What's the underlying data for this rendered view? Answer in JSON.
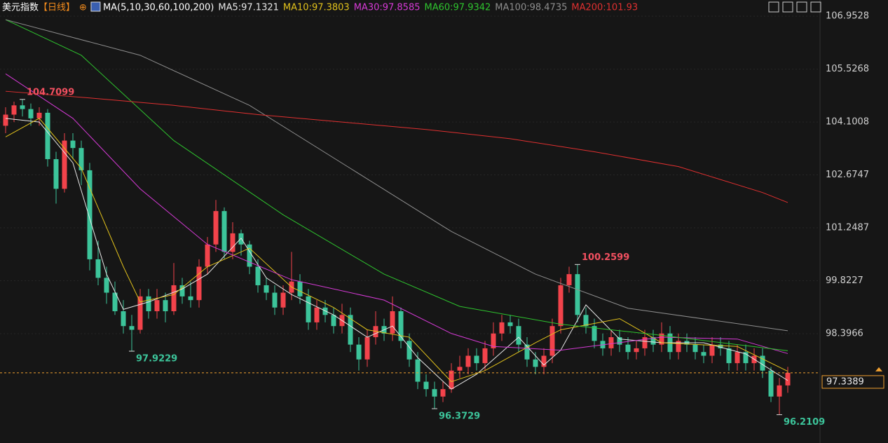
{
  "chart_data": {
    "type": "candlestick",
    "title": "美元指数",
    "period": "【日线】",
    "period_icon": "⊕",
    "indicator": "MA(5,10,30,60,100,200)",
    "ylim": [
      95.58,
      107.39
    ],
    "yticks": [
      106.9528,
      105.5268,
      104.1008,
      102.6747,
      101.2487,
      99.8227,
      98.3966
    ],
    "last_price": 97.3389,
    "colors": {
      "up": "#f2434b",
      "down": "#3cc49a",
      "last": "#f0a030"
    },
    "open": [
      104.0,
      104.3,
      104.55,
      104.45,
      104.2,
      104.35,
      103.1,
      102.3,
      103.6,
      103.4,
      102.8,
      100.4,
      99.9,
      99.5,
      99.0,
      98.6,
      98.5,
      99.4,
      99.0,
      99.3,
      99.0,
      99.7,
      99.4,
      99.3,
      100.2,
      100.8,
      101.7,
      100.6,
      101.1,
      100.8,
      100.2,
      99.7,
      99.5,
      99.1,
      99.5,
      99.8,
      99.4,
      98.7,
      99.1,
      98.9,
      98.6,
      98.9,
      98.1,
      97.7,
      98.3,
      98.6,
      98.4,
      99.0,
      98.2,
      97.7,
      97.1,
      96.9,
      96.7,
      96.9,
      97.4,
      97.5,
      97.8,
      97.6,
      98.0,
      98.4,
      98.7,
      98.6,
      98.1,
      97.7,
      97.5,
      97.8,
      98.6,
      99.7,
      100.0,
      98.9,
      98.6,
      98.2,
      98.0,
      98.3,
      98.1,
      97.9,
      98.0,
      98.3,
      98.1,
      98.4,
      97.9,
      98.2,
      98.1,
      97.9,
      97.8,
      98.1,
      98.0,
      97.6,
      97.9,
      97.6,
      97.8,
      97.4,
      96.7,
      97.0
    ],
    "high": [
      104.5,
      104.65,
      104.7099,
      104.6,
      104.5,
      104.45,
      103.3,
      103.8,
      103.8,
      103.6,
      103.0,
      100.9,
      100.2,
      99.8,
      99.3,
      98.9,
      99.6,
      99.6,
      99.6,
      99.5,
      100.3,
      99.9,
      99.8,
      100.4,
      101.0,
      102.0,
      101.8,
      101.4,
      101.2,
      100.9,
      100.4,
      99.9,
      99.7,
      99.7,
      100.6,
      100.0,
      99.6,
      99.3,
      99.3,
      99.1,
      99.2,
      99.1,
      98.3,
      98.5,
      99.0,
      98.8,
      99.4,
      99.1,
      98.4,
      97.9,
      97.3,
      97.1,
      97.1,
      97.6,
      97.8,
      98.0,
      98.0,
      98.2,
      98.7,
      98.9,
      98.9,
      98.8,
      98.3,
      97.9,
      98.0,
      98.8,
      99.9,
      100.2,
      100.2599,
      99.1,
      98.8,
      98.4,
      98.5,
      98.5,
      98.3,
      98.2,
      98.5,
      98.5,
      98.7,
      98.6,
      98.4,
      98.4,
      98.3,
      98.1,
      98.3,
      98.3,
      98.2,
      98.1,
      98.1,
      98.0,
      98.0,
      97.5,
      97.2,
      97.5
    ],
    "low": [
      103.8,
      104.1,
      104.25,
      104.0,
      104.0,
      102.9,
      101.9,
      102.2,
      103.1,
      102.4,
      100.1,
      99.7,
      99.2,
      98.9,
      98.4,
      97.9229,
      98.4,
      98.8,
      98.8,
      98.7,
      98.9,
      99.2,
      99.1,
      99.1,
      100.0,
      100.6,
      100.4,
      100.4,
      100.5,
      100.0,
      99.5,
      99.3,
      98.9,
      98.9,
      99.3,
      99.2,
      98.5,
      98.5,
      98.7,
      98.4,
      98.4,
      97.9,
      97.4,
      97.5,
      98.1,
      98.2,
      98.2,
      98.0,
      97.5,
      96.9,
      96.7,
      96.3729,
      96.55,
      96.8,
      97.2,
      97.3,
      97.4,
      97.4,
      97.8,
      98.2,
      98.4,
      97.9,
      97.5,
      97.3,
      97.3,
      97.6,
      98.4,
      99.5,
      98.7,
      98.4,
      98.0,
      97.8,
      97.8,
      97.9,
      97.7,
      97.7,
      97.8,
      97.9,
      97.9,
      97.7,
      97.7,
      97.9,
      97.7,
      97.6,
      97.6,
      97.8,
      97.4,
      97.4,
      97.4,
      97.4,
      97.2,
      96.55,
      96.2109,
      96.8
    ],
    "close": [
      104.3,
      104.55,
      104.45,
      104.2,
      104.35,
      103.1,
      102.3,
      103.6,
      103.4,
      102.8,
      100.4,
      99.9,
      99.5,
      99.0,
      98.6,
      98.5,
      99.4,
      99.0,
      99.3,
      99.0,
      99.7,
      99.4,
      99.3,
      100.2,
      100.8,
      101.7,
      100.6,
      101.1,
      100.8,
      100.2,
      99.7,
      99.5,
      99.1,
      99.5,
      99.8,
      99.4,
      98.7,
      99.1,
      98.9,
      98.6,
      98.9,
      98.1,
      97.7,
      98.3,
      98.6,
      98.4,
      99.0,
      98.2,
      97.7,
      97.1,
      96.9,
      96.7,
      96.9,
      97.4,
      97.5,
      97.8,
      97.6,
      98.0,
      98.4,
      98.7,
      98.6,
      98.1,
      97.7,
      97.5,
      97.8,
      98.6,
      99.7,
      100.0,
      98.9,
      98.6,
      98.2,
      98.0,
      98.3,
      98.1,
      97.9,
      98.0,
      98.3,
      98.1,
      98.4,
      97.9,
      98.2,
      98.1,
      97.9,
      97.8,
      98.1,
      98.0,
      97.6,
      97.9,
      97.6,
      97.8,
      97.4,
      96.7,
      97.0,
      97.3389
    ],
    "annotations": [
      104.7099,
      97.9229,
      96.3729,
      100.2599,
      96.2109
    ],
    "series": [
      {
        "name": "MA5:97.1321",
        "color": "#e8e8e8",
        "x": [
          0,
          4,
          8,
          12,
          14,
          17,
          21,
          24,
          28,
          31,
          34,
          39,
          43,
          46,
          49,
          53,
          56,
          61,
          64,
          66,
          69,
          73,
          78,
          83,
          88,
          93
        ],
        "values": [
          104.2,
          104.1,
          103.0,
          100.0,
          99.05,
          99.25,
          99.6,
          100.0,
          100.97,
          99.9,
          99.45,
          98.9,
          98.3,
          98.6,
          97.75,
          96.9,
          97.3,
          98.3,
          97.55,
          97.95,
          99.17,
          98.25,
          98.15,
          98.15,
          97.85,
          97.1321
        ]
      },
      {
        "name": "MA10:97.3803",
        "color": "#e2c21c",
        "x": [
          0,
          4,
          9,
          14,
          16,
          20,
          24,
          29,
          34,
          39,
          43,
          48,
          53,
          57,
          63,
          66,
          73,
          78,
          87,
          93
        ],
        "values": [
          103.7,
          104.2,
          102.85,
          100.2,
          99.25,
          99.45,
          100.2,
          100.7,
          99.65,
          99.1,
          98.5,
          98.3,
          97.1,
          97.4,
          98.15,
          98.5,
          98.8,
          98.15,
          98.05,
          97.3803
        ]
      },
      {
        "name": "MA30:97.8585",
        "color": "#d63ad6",
        "x": [
          0,
          8,
          16,
          24,
          34,
          45,
          53,
          58,
          66,
          78,
          87,
          93
        ],
        "values": [
          105.4,
          104.2,
          102.3,
          100.8,
          99.85,
          99.3,
          98.4,
          98.05,
          97.95,
          98.3,
          98.25,
          97.8585
        ]
      },
      {
        "name": "MA60:97.9342",
        "color": "#2ec42e",
        "x": [
          0,
          9,
          20,
          33,
          45,
          54,
          66,
          78,
          93
        ],
        "values": [
          106.86,
          105.9,
          103.6,
          101.6,
          100.0,
          99.13,
          98.65,
          98.35,
          97.9342
        ]
      },
      {
        "name": "MA100:98.4735",
        "color": "#8e8e8e",
        "x": [
          0,
          16,
          29,
          41,
          53,
          63,
          74,
          93
        ],
        "values": [
          106.86,
          105.9,
          104.55,
          102.85,
          101.15,
          100.0,
          99.08,
          98.4735
        ]
      },
      {
        "name": "MA200:101.93",
        "color": "#e03030",
        "x": [
          0,
          10,
          20,
          30,
          40,
          50,
          60,
          70,
          80,
          90,
          93
        ],
        "values": [
          104.93,
          104.75,
          104.55,
          104.3,
          104.1,
          103.9,
          103.65,
          103.3,
          102.9,
          102.2,
          101.93
        ]
      }
    ]
  }
}
